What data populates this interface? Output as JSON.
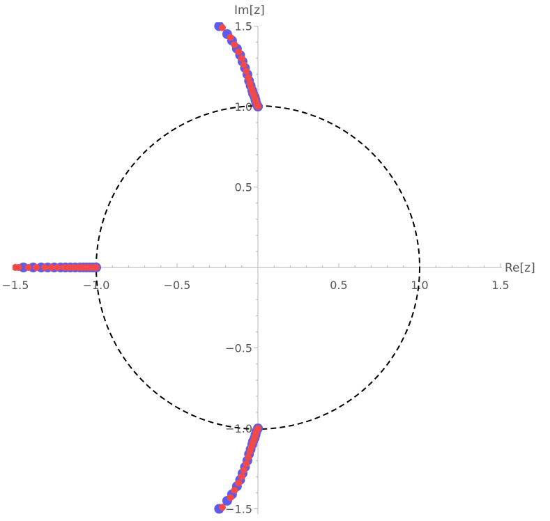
{
  "chart_data": {
    "type": "scatter",
    "xlabel": "Re[z]",
    "ylabel": "Im[z]",
    "xlim": [
      -1.5,
      1.5
    ],
    "ylim": [
      -1.5,
      1.5
    ],
    "x_ticks": [
      {
        "value": -1.5,
        "label": "−1.5"
      },
      {
        "value": -1.0,
        "label": "−1.0"
      },
      {
        "value": -0.5,
        "label": "−0.5"
      },
      {
        "value": 0.5,
        "label": "0.5"
      },
      {
        "value": 1.0,
        "label": "1.0"
      },
      {
        "value": 1.5,
        "label": "1.5"
      }
    ],
    "y_ticks": [
      {
        "value": 1.5,
        "label": "1.5"
      },
      {
        "value": 1.0,
        "label": "1.0"
      },
      {
        "value": 0.5,
        "label": "0.5"
      },
      {
        "value": -0.5,
        "label": "−0.5"
      },
      {
        "value": -1.0,
        "label": "−1.0"
      },
      {
        "value": -1.5,
        "label": "−1.5"
      }
    ],
    "unit_circle": {
      "center": [
        0,
        0
      ],
      "radius": 1,
      "style": "dashed",
      "color": "#000000"
    },
    "grid": false,
    "series": [
      {
        "color": "#5b5bf0",
        "points": [
          [
            -1.0,
            0
          ],
          [
            -1.02,
            0
          ],
          [
            -1.04,
            0
          ],
          [
            -1.06,
            0
          ],
          [
            -1.08,
            0
          ],
          [
            -1.1,
            0
          ],
          [
            -1.13,
            0
          ],
          [
            -1.16,
            0
          ],
          [
            -1.19,
            0
          ],
          [
            -1.22,
            0
          ],
          [
            -1.26,
            0
          ],
          [
            -1.3,
            0
          ],
          [
            -1.34,
            0
          ],
          [
            -1.39,
            0
          ],
          [
            -1.45,
            0
          ],
          [
            0.0,
            1.0
          ],
          [
            -0.01,
            1.02
          ],
          [
            -0.015,
            1.04
          ],
          [
            -0.02,
            1.06
          ],
          [
            -0.03,
            1.08
          ],
          [
            -0.035,
            1.1
          ],
          [
            -0.045,
            1.13
          ],
          [
            -0.055,
            1.16
          ],
          [
            -0.065,
            1.2
          ],
          [
            -0.08,
            1.24
          ],
          [
            -0.095,
            1.28
          ],
          [
            -0.11,
            1.32
          ],
          [
            -0.13,
            1.36
          ],
          [
            -0.16,
            1.41
          ],
          [
            -0.19,
            1.45
          ],
          [
            -0.24,
            1.5
          ],
          [
            0.0,
            -1.0
          ],
          [
            -0.01,
            -1.02
          ],
          [
            -0.015,
            -1.04
          ],
          [
            -0.02,
            -1.06
          ],
          [
            -0.03,
            -1.08
          ],
          [
            -0.035,
            -1.1
          ],
          [
            -0.045,
            -1.13
          ],
          [
            -0.055,
            -1.16
          ],
          [
            -0.065,
            -1.2
          ],
          [
            -0.08,
            -1.24
          ],
          [
            -0.095,
            -1.28
          ],
          [
            -0.11,
            -1.32
          ],
          [
            -0.13,
            -1.36
          ],
          [
            -0.16,
            -1.41
          ],
          [
            -0.19,
            -1.45
          ],
          [
            -0.24,
            -1.5
          ]
        ]
      },
      {
        "color": "#f04a4a",
        "points": [
          [
            -1.0,
            0
          ],
          [
            -1.01,
            0
          ],
          [
            -1.03,
            0
          ],
          [
            -1.05,
            0
          ],
          [
            -1.07,
            0
          ],
          [
            -1.09,
            0
          ],
          [
            -1.11,
            0
          ],
          [
            -1.14,
            0
          ],
          [
            -1.17,
            0
          ],
          [
            -1.2,
            0
          ],
          [
            -1.24,
            0
          ],
          [
            -1.28,
            0
          ],
          [
            -1.32,
            0
          ],
          [
            -1.37,
            0
          ],
          [
            -1.42,
            0
          ],
          [
            -1.48,
            0
          ],
          [
            -1.5,
            0
          ],
          [
            0.0,
            1.0
          ],
          [
            -0.005,
            1.01
          ],
          [
            -0.012,
            1.03
          ],
          [
            -0.018,
            1.05
          ],
          [
            -0.025,
            1.07
          ],
          [
            -0.032,
            1.09
          ],
          [
            -0.04,
            1.115
          ],
          [
            -0.05,
            1.145
          ],
          [
            -0.06,
            1.18
          ],
          [
            -0.072,
            1.22
          ],
          [
            -0.088,
            1.26
          ],
          [
            -0.1,
            1.3
          ],
          [
            -0.12,
            1.34
          ],
          [
            -0.145,
            1.385
          ],
          [
            -0.17,
            1.43
          ],
          [
            -0.22,
            1.49
          ],
          [
            0.0,
            -1.0
          ],
          [
            -0.005,
            -1.01
          ],
          [
            -0.012,
            -1.03
          ],
          [
            -0.018,
            -1.05
          ],
          [
            -0.025,
            -1.07
          ],
          [
            -0.032,
            -1.09
          ],
          [
            -0.04,
            -1.115
          ],
          [
            -0.05,
            -1.145
          ],
          [
            -0.06,
            -1.18
          ],
          [
            -0.072,
            -1.22
          ],
          [
            -0.088,
            -1.26
          ],
          [
            -0.1,
            -1.3
          ],
          [
            -0.12,
            -1.34
          ],
          [
            -0.145,
            -1.385
          ],
          [
            -0.17,
            -1.43
          ],
          [
            -0.22,
            -1.49
          ]
        ]
      }
    ]
  }
}
